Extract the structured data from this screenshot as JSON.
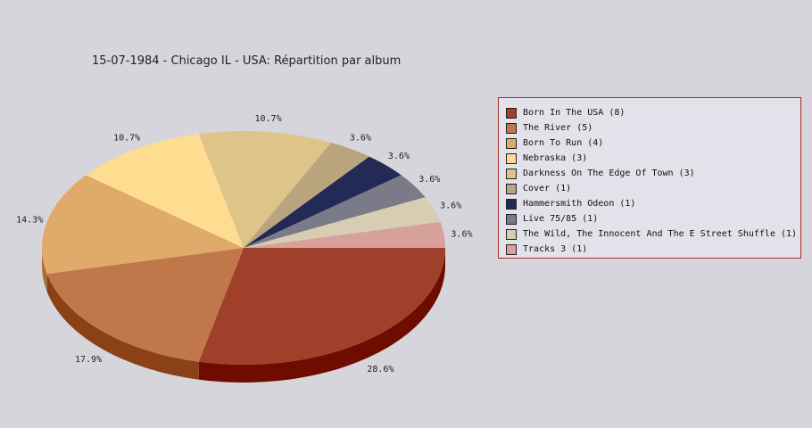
{
  "chart_data": {
    "type": "pie",
    "title": "15-07-1984 - Chicago IL - USA:  Répartition par album",
    "legend_position": "right",
    "slices": [
      {
        "label": "Born In The USA (8)",
        "value": 8,
        "percent": "28.6%",
        "color": "#a0402a",
        "side_color": "#6e0c00"
      },
      {
        "label": "The River (5)",
        "value": 5,
        "percent": "17.9%",
        "color": "#c0784a",
        "side_color": "#8b4016"
      },
      {
        "label": "Born To Run (4)",
        "value": 4,
        "percent": "14.3%",
        "color": "#e0aa6a",
        "side_color": "#a87030"
      },
      {
        "label": "Nebraska (3)",
        "value": 3,
        "percent": "10.7%",
        "color": "#ffdd90"
      },
      {
        "label": "Darkness On The Edge Of Town (3)",
        "value": 3,
        "percent": "10.7%",
        "color": "#dec488"
      },
      {
        "label": "Cover (1)",
        "value": 1,
        "percent": "3.6%",
        "color": "#b9a47e"
      },
      {
        "label": "Hammersmith Odeon  (1)",
        "value": 1,
        "percent": "3.6%",
        "color": "#222a55"
      },
      {
        "label": "Live 75/85 (1)",
        "value": 1,
        "percent": "3.6%",
        "color": "#7a7a88"
      },
      {
        "label": "The Wild, The Innocent And The E Street Shuffle (1)",
        "value": 1,
        "percent": "3.6%",
        "color": "#d8ccb2"
      },
      {
        "label": "Tracks 3 (1)",
        "value": 1,
        "percent": "3.6%",
        "color": "#d8a09a",
        "side_color": "#a06862"
      }
    ]
  }
}
